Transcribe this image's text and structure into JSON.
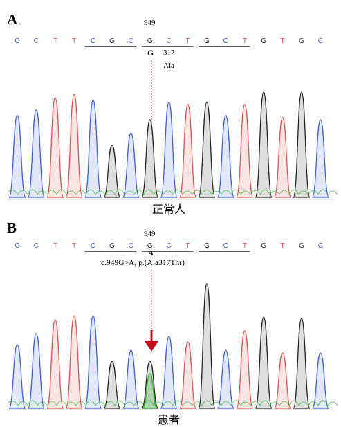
{
  "colors": {
    "C": "#3d5fd6",
    "T": "#e05050",
    "G": "#222222",
    "A": "#2fae2f",
    "marker": "#c0111a"
  },
  "panel_a": {
    "letter": "A",
    "position": "949",
    "sequence": [
      "C",
      "C",
      "T",
      "T",
      "C",
      "G",
      "C",
      "G",
      "C",
      "T",
      "G",
      "C",
      "T",
      "G",
      "T",
      "G",
      "C"
    ],
    "base_call": "G",
    "codon_number": "317",
    "amino_acid": "Ala",
    "caption": "正常人",
    "peak_heights": [
      0.74,
      0.79,
      0.9,
      0.93,
      0.88,
      0.47,
      0.58,
      0.7,
      0.86,
      0.84,
      0.86,
      0.74,
      0.84,
      0.95,
      0.72,
      0.95,
      0.7
    ]
  },
  "panel_b": {
    "letter": "B",
    "position": "949",
    "sequence": [
      "C",
      "C",
      "T",
      "T",
      "C",
      "G",
      "C",
      "G",
      "C",
      "T",
      "G",
      "C",
      "T",
      "G",
      "T",
      "G",
      "C"
    ],
    "base_call": "A",
    "mutation": "c.949G>A,  p.(Ala317Thr)",
    "caption": "患者",
    "peak_heights": [
      0.46,
      0.54,
      0.64,
      0.67,
      0.67,
      0.34,
      0.42,
      0.34,
      0.52,
      0.48,
      0.9,
      0.42,
      0.56,
      0.66,
      0.4,
      0.65,
      0.4
    ]
  }
}
